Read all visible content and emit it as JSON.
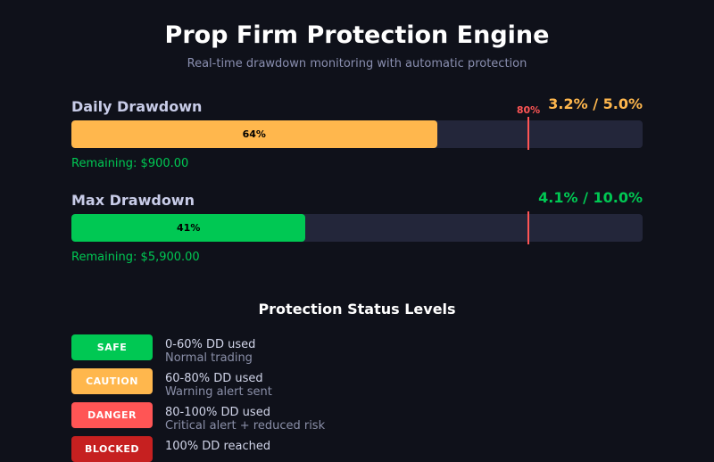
{
  "header": {
    "title": "Prop Firm Protection Engine",
    "subtitle": "Real-time drawdown monitoring with automatic protection"
  },
  "daily": {
    "label": "Daily Drawdown",
    "value": "3.2% / 5.0%",
    "percent": 64,
    "percent_label": "64%",
    "threshold": 80,
    "threshold_label": "80%",
    "remaining": "Remaining: $900.00",
    "color": "#ffb74d"
  },
  "max": {
    "label": "Max Drawdown",
    "value": "4.1% / 10.0%",
    "percent": 41,
    "percent_label": "41%",
    "threshold": 80,
    "remaining": "Remaining: $5,900.00",
    "color": "#00c853"
  },
  "levels": {
    "title": "Protection Status Levels",
    "items": [
      {
        "badge": "SAFE",
        "range": "0-60% DD used",
        "desc": "Normal trading",
        "color": "#00c853"
      },
      {
        "badge": "CAUTION",
        "range": "60-80% DD used",
        "desc": "Warning alert sent",
        "color": "#ffb74d"
      },
      {
        "badge": "DANGER",
        "range": "80-100% DD used",
        "desc": "Critical alert + reduced risk",
        "color": "#ff5555"
      },
      {
        "badge": "BLOCKED",
        "range": "100% DD reached",
        "desc": "",
        "color": "#c62020"
      }
    ]
  }
}
